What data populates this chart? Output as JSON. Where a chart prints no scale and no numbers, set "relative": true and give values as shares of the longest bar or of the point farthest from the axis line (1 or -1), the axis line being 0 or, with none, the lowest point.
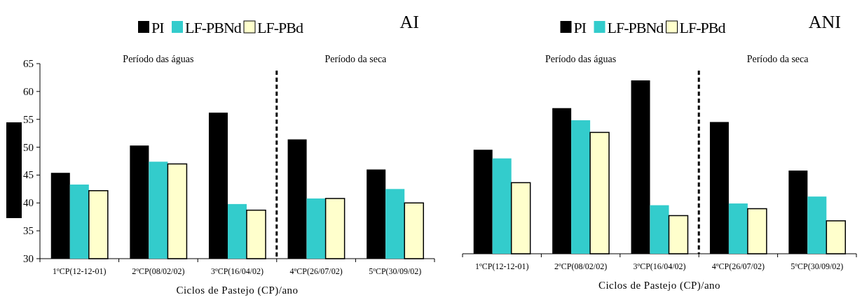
{
  "chart_data": [
    {
      "type": "bar",
      "title": "AI",
      "xlabel": "Ciclos de Pastejo (CP)/ano",
      "categories": [
        "1ºCP(12-12-01)",
        "2ºCP(08/02/02)",
        "3ºCP(16/04/02)",
        "4ºCP(26/07/02)",
        "5ºCP(30/09/02)"
      ],
      "series": [
        {
          "name": "PI",
          "color": "#000000",
          "values": [
            45.4,
            50.3,
            56.2,
            51.4,
            46.0
          ]
        },
        {
          "name": "LF-PBNd",
          "color": "#33cccc",
          "values": [
            43.3,
            47.4,
            39.8,
            40.8,
            42.5
          ]
        },
        {
          "name": "LF-PBd",
          "color": "#ffffcc",
          "values": [
            42.2,
            47.0,
            38.7,
            40.8,
            40.0
          ]
        }
      ],
      "ylim": [
        30,
        65
      ],
      "yticks": [
        30,
        35,
        40,
        45,
        50,
        55,
        60,
        65
      ],
      "legend": "top",
      "annotations": [
        "Período das águas",
        "Período da seca"
      ]
    },
    {
      "type": "bar",
      "title": "ANI",
      "xlabel": "Ciclos de Pastejo (CP)/ano",
      "categories": [
        "1ºCP(12-12-01)",
        "2ºCP(08/02/02)",
        "3ºCP(16/04/02)",
        "4ºCP(26/07/02)",
        "5ºCP(30/09/02)"
      ],
      "relative": true,
      "series": [
        {
          "name": "PI",
          "color": "#000000",
          "values": [
            0.6,
            0.84,
            1,
            0.76,
            0.48
          ]
        },
        {
          "name": "LF-PBNd",
          "color": "#33cccc",
          "values": [
            0.55,
            0.77,
            0.28,
            0.29,
            0.33
          ]
        },
        {
          "name": "LF-PBd",
          "color": "#ffffcc",
          "values": [
            0.41,
            0.7,
            0.22,
            0.26,
            0.19
          ]
        }
      ],
      "legend": "top",
      "annotations": [
        "Período das águas",
        "Período da seca"
      ]
    }
  ]
}
